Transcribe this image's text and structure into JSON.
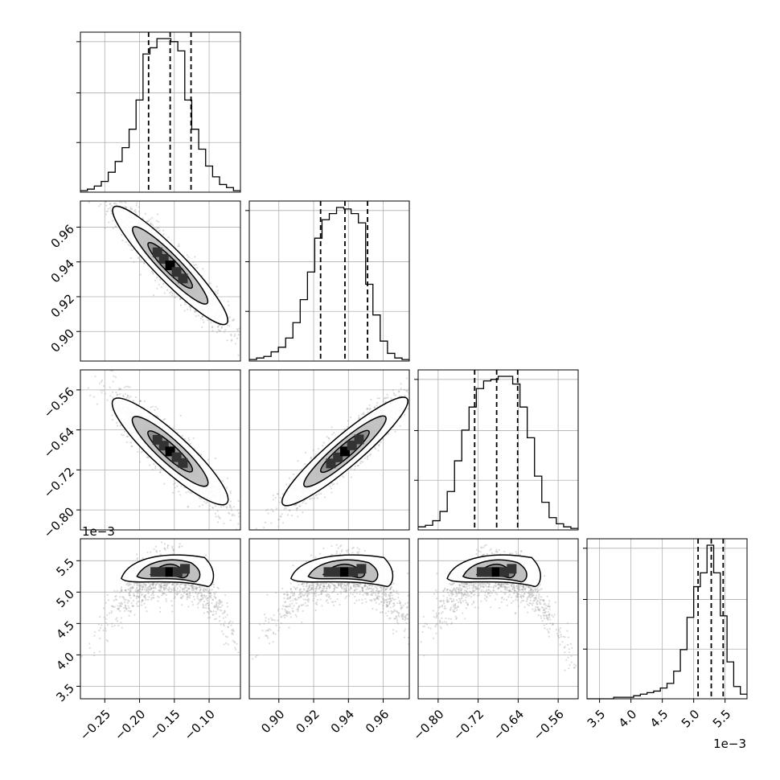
{
  "chart_data": {
    "type": "corner",
    "parameters": [
      {
        "name": "",
        "range": [
          -0.285,
          -0.055
        ],
        "ticks": [
          -0.25,
          -0.2,
          -0.15,
          -0.1
        ],
        "tick_labels": [
          "−0.25",
          "−0.20",
          "−0.15",
          "−0.10"
        ],
        "quantiles": [
          -0.187,
          -0.156,
          -0.126
        ],
        "offset_text": ""
      },
      {
        "name": "",
        "range": [
          0.883,
          0.975
        ],
        "ticks": [
          0.9,
          0.92,
          0.94,
          0.96
        ],
        "tick_labels": [
          "0.90",
          "0.92",
          "0.94",
          "0.96"
        ],
        "quantiles": [
          0.924,
          0.938,
          0.951
        ],
        "offset_text": ""
      },
      {
        "name": "",
        "range": [
          -0.84,
          -0.52
        ],
        "ticks": [
          -0.8,
          -0.72,
          -0.64,
          -0.56
        ],
        "tick_labels": [
          "−0.80",
          "−0.72",
          "−0.64",
          "−0.56"
        ],
        "quantiles": [
          -0.727,
          -0.683,
          -0.641
        ],
        "offset_text": ""
      },
      {
        "name": "",
        "range": [
          3.3,
          5.85
        ],
        "ticks": [
          3.5,
          4.0,
          4.5,
          5.0,
          5.5
        ],
        "tick_labels": [
          "3.5",
          "4.0",
          "4.5",
          "5.0",
          "5.5"
        ],
        "quantiles": [
          5.07,
          5.28,
          5.47
        ],
        "offset_text": "1e−3"
      }
    ],
    "histograms": [
      [
        0.01,
        0.02,
        0.04,
        0.07,
        0.13,
        0.2,
        0.29,
        0.41,
        0.6,
        0.9,
        0.94,
        1.0,
        1.0,
        0.98,
        0.92,
        0.6,
        0.41,
        0.28,
        0.17,
        0.1,
        0.05,
        0.03,
        0.01
      ],
      [
        0.01,
        0.02,
        0.03,
        0.06,
        0.09,
        0.15,
        0.25,
        0.4,
        0.58,
        0.8,
        0.92,
        0.96,
        1.0,
        0.99,
        0.96,
        0.9,
        0.5,
        0.3,
        0.13,
        0.05,
        0.02,
        0.01
      ],
      [
        0.02,
        0.03,
        0.06,
        0.12,
        0.25,
        0.45,
        0.65,
        0.8,
        0.92,
        0.97,
        0.98,
        1.0,
        1.0,
        0.95,
        0.8,
        0.6,
        0.35,
        0.18,
        0.08,
        0.04,
        0.02,
        0.01
      ],
      [
        0.0,
        0.0,
        0.0,
        0.0,
        0.01,
        0.01,
        0.01,
        0.02,
        0.03,
        0.04,
        0.05,
        0.07,
        0.1,
        0.18,
        0.32,
        0.53,
        0.73,
        0.82,
        1.0,
        0.82,
        0.54,
        0.24,
        0.08,
        0.03
      ]
    ],
    "grid": true,
    "contours": true
  }
}
